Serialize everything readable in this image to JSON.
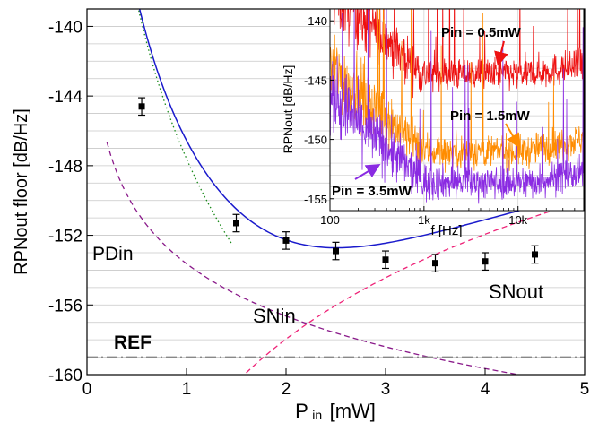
{
  "chart_data": {
    "type": "scatter",
    "xlabel_main": "P",
    "xlabel_sub": "in",
    "xlabel_unit": "[mW]",
    "ylabel": "RPNout floor [dB/Hz]",
    "xlim": [
      0,
      5
    ],
    "ylim": [
      -160,
      -139
    ],
    "xticks": [
      0,
      1,
      2,
      3,
      4,
      5
    ],
    "yticks": [
      -160,
      -156,
      -152,
      -148,
      -144,
      -140
    ],
    "grid": "horizontal",
    "points": {
      "x": [
        0.55,
        1.5,
        2.0,
        2.5,
        3.0,
        3.5,
        4.0,
        4.5
      ],
      "y": [
        -144.6,
        -151.3,
        -152.3,
        -152.9,
        -153.4,
        -153.6,
        -153.5,
        -153.1
      ],
      "err": [
        0.5,
        0.5,
        0.5,
        0.5,
        0.5,
        0.5,
        0.5,
        0.5
      ]
    },
    "lines": [
      {
        "label": "",
        "color": "#1a1acc",
        "style": "solid"
      },
      {
        "label": "PDin",
        "color": "#1a8a1a",
        "style": "dotted"
      },
      {
        "label": "SNin",
        "color": "#8a1a8a",
        "style": "dashed"
      },
      {
        "label": "SNout",
        "color": "#ee2277",
        "style": "dashed"
      },
      {
        "label": "REF",
        "color": "#888888",
        "style": "dashdot",
        "value": -159
      }
    ],
    "inset": {
      "xlabel": "f [Hz]",
      "ylabel": "RPNout [dB/Hz]",
      "xscale": "log",
      "xlim": [
        100,
        50000
      ],
      "ylim": [
        -156,
        -139
      ],
      "xticks": [
        "100",
        "1k",
        "10k"
      ],
      "yticks": [
        -155,
        -150,
        -145,
        -140
      ],
      "series": [
        {
          "name": "Pin = 0.5 mW",
          "label": "Pin = 0.5mW",
          "color": "#ee1111",
          "floor": -144.5
        },
        {
          "name": "Pin = 1.5 mW",
          "label": "Pin = 1.5mW",
          "color": "#ff8c00",
          "floor": -151.0
        },
        {
          "name": "Pin = 3.5 mW",
          "label": "Pin = 3.5mW",
          "color": "#8a2be2",
          "floor": -153.6
        }
      ]
    }
  }
}
